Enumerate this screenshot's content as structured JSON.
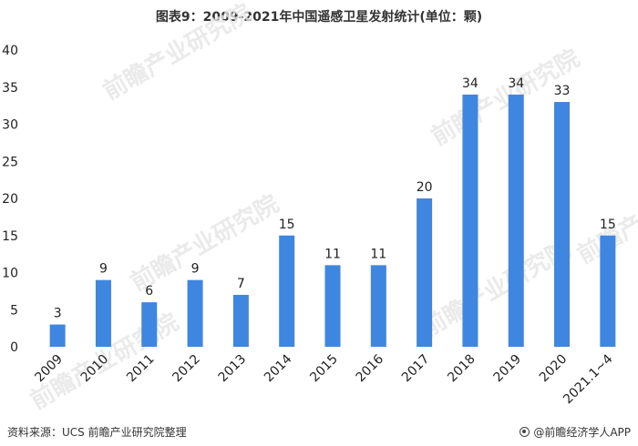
{
  "chart_data": {
    "type": "bar",
    "title": "图表9：2009-2021年中国遥感卫星发射统计(单位：颗)",
    "categories": [
      "2009",
      "2010",
      "2011",
      "2012",
      "2013",
      "2014",
      "2015",
      "2016",
      "2017",
      "2018",
      "2019",
      "2020",
      "2021.1~4"
    ],
    "values": [
      3,
      9,
      6,
      9,
      7,
      15,
      11,
      11,
      20,
      34,
      34,
      33,
      15
    ],
    "xlabel": "",
    "ylabel": "",
    "ylim": [
      0,
      40
    ],
    "yticks": [
      0,
      5,
      10,
      15,
      20,
      25,
      30,
      35,
      40
    ],
    "grid": false,
    "legend": "none",
    "bar_color": "#3e86e0"
  },
  "footer": {
    "source": "资料来源：UCS 前瞻产业研究院整理",
    "credit": "@前瞻经济学人APP"
  },
  "watermark": {
    "text": "前瞻产业研究院"
  }
}
